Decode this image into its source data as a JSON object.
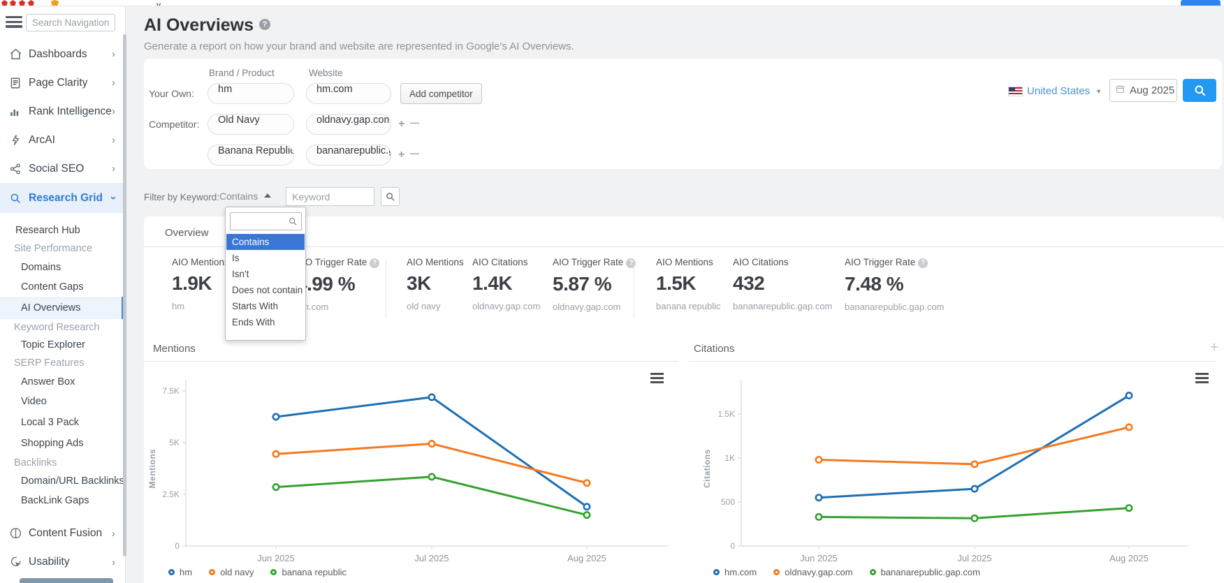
{
  "window": {
    "toolbar_fragment": "y"
  },
  "sidebar": {
    "search_placeholder": "Search Navigation",
    "items": [
      {
        "label": "Dashboards"
      },
      {
        "label": "Page Clarity"
      },
      {
        "label": "Rank Intelligence"
      },
      {
        "label": "ArcAI"
      },
      {
        "label": "Social SEO"
      },
      {
        "label": "Research Grid"
      }
    ],
    "research_grid_children": [
      {
        "label": "Research Hub"
      },
      {
        "label": "Site Performance"
      },
      {
        "label": "Domains"
      },
      {
        "label": "Content Gaps"
      },
      {
        "label": "AI Overviews"
      },
      {
        "label": "Keyword Research"
      },
      {
        "label": "Topic Explorer"
      },
      {
        "label": "SERP Features"
      },
      {
        "label": "Answer Box"
      },
      {
        "label": "Video"
      },
      {
        "label": "Local 3 Pack"
      },
      {
        "label": "Shopping Ads"
      },
      {
        "label": "Backlinks"
      },
      {
        "label": "Domain/URL Backlinks"
      },
      {
        "label": "BackLink Gaps"
      }
    ],
    "bottom_items": [
      {
        "label": "Content Fusion"
      },
      {
        "label": "Usability"
      }
    ]
  },
  "header": {
    "title": "AI Overviews",
    "subtitle": "Generate a report on how your brand and website are represented in Google's AI Overviews."
  },
  "form": {
    "columns": {
      "brand": "Brand / Product",
      "website": "Website"
    },
    "your_own_label": "Your Own:",
    "competitor_label": "Competitor:",
    "rows": [
      {
        "brand": "hm",
        "website": "hm.com"
      },
      {
        "brand": "Old Navy",
        "website": "oldnavy.gap.com"
      },
      {
        "brand": "Banana Republic",
        "website": "bananarepublic.gap.com"
      }
    ],
    "add_competitor": "Add competitor",
    "plus": "+",
    "minus": "—"
  },
  "toolbar": {
    "country": "United States",
    "month": "Aug 2025"
  },
  "filter": {
    "label": "Filter by Keyword:",
    "operator": "Contains",
    "keyword_placeholder": "Keyword",
    "selected_option": "Contains",
    "dropdown_options": [
      "Contains",
      "Is",
      "Isn't",
      "Does not contain",
      "Starts With",
      "Ends With"
    ]
  },
  "overview": {
    "tab": "Overview",
    "stat_groups": [
      {
        "stats": [
          {
            "label": "AIO Mentions",
            "value": "1.9K",
            "sub": "hm"
          },
          {
            "label": "AIO Trigger Rate",
            "value": "4.99 %",
            "sub": "hm.com"
          }
        ]
      },
      {
        "stats": [
          {
            "label": "AIO Mentions",
            "value": "3K",
            "sub": "old navy"
          },
          {
            "label": "AIO Citations",
            "value": "1.4K",
            "sub": "oldnavy.gap.com"
          },
          {
            "label": "AIO Trigger Rate",
            "value": "5.87 %",
            "sub": "oldnavy.gap.com"
          }
        ]
      },
      {
        "stats": [
          {
            "label": "AIO Mentions",
            "value": "1.5K",
            "sub": "banana republic"
          },
          {
            "label": "AIO Citations",
            "value": "432",
            "sub": "bananarepublic.gap.com"
          },
          {
            "label": "AIO Trigger Rate",
            "value": "7.48 %",
            "sub": "bananarepublic.gap.com"
          }
        ]
      }
    ]
  },
  "chart_data": [
    {
      "id": "mentions",
      "type": "line",
      "title": "Mentions",
      "ylabel": "Mentions",
      "categories": [
        "Jun 2025",
        "Jul 2025",
        "Aug 2025"
      ],
      "yticks": [
        0,
        2500,
        5000,
        7500
      ],
      "ytick_labels": [
        "0",
        "2.5K",
        "5K",
        "7.5K"
      ],
      "ylim": [
        0,
        7800
      ],
      "grid": false,
      "legend_position": "bottom",
      "series": [
        {
          "name": "hm",
          "color": "#1f6fb4",
          "values": [
            6250,
            7200,
            1900
          ]
        },
        {
          "name": "old navy",
          "color": "#f4791f",
          "values": [
            4450,
            4950,
            3050
          ]
        },
        {
          "name": "banana republic",
          "color": "#35a12f",
          "values": [
            2850,
            3350,
            1500
          ]
        }
      ]
    },
    {
      "id": "citations",
      "type": "line",
      "title": "Citations",
      "ylabel": "Citations",
      "categories": [
        "Jun 2025",
        "Jul 2025",
        "Aug 2025"
      ],
      "yticks": [
        0,
        500,
        1000,
        1500
      ],
      "ytick_labels": [
        "0",
        "500",
        "1K",
        "1.5K"
      ],
      "ylim": [
        0,
        1850
      ],
      "grid": false,
      "legend_position": "bottom",
      "series": [
        {
          "name": "hm.com",
          "color": "#1f6fb4",
          "values": [
            550,
            650,
            1710
          ]
        },
        {
          "name": "oldnavy.gap.com",
          "color": "#f4791f",
          "values": [
            980,
            930,
            1350
          ]
        },
        {
          "name": "bananarepublic.gap.com",
          "color": "#35a12f",
          "values": [
            330,
            315,
            432
          ]
        }
      ]
    }
  ]
}
